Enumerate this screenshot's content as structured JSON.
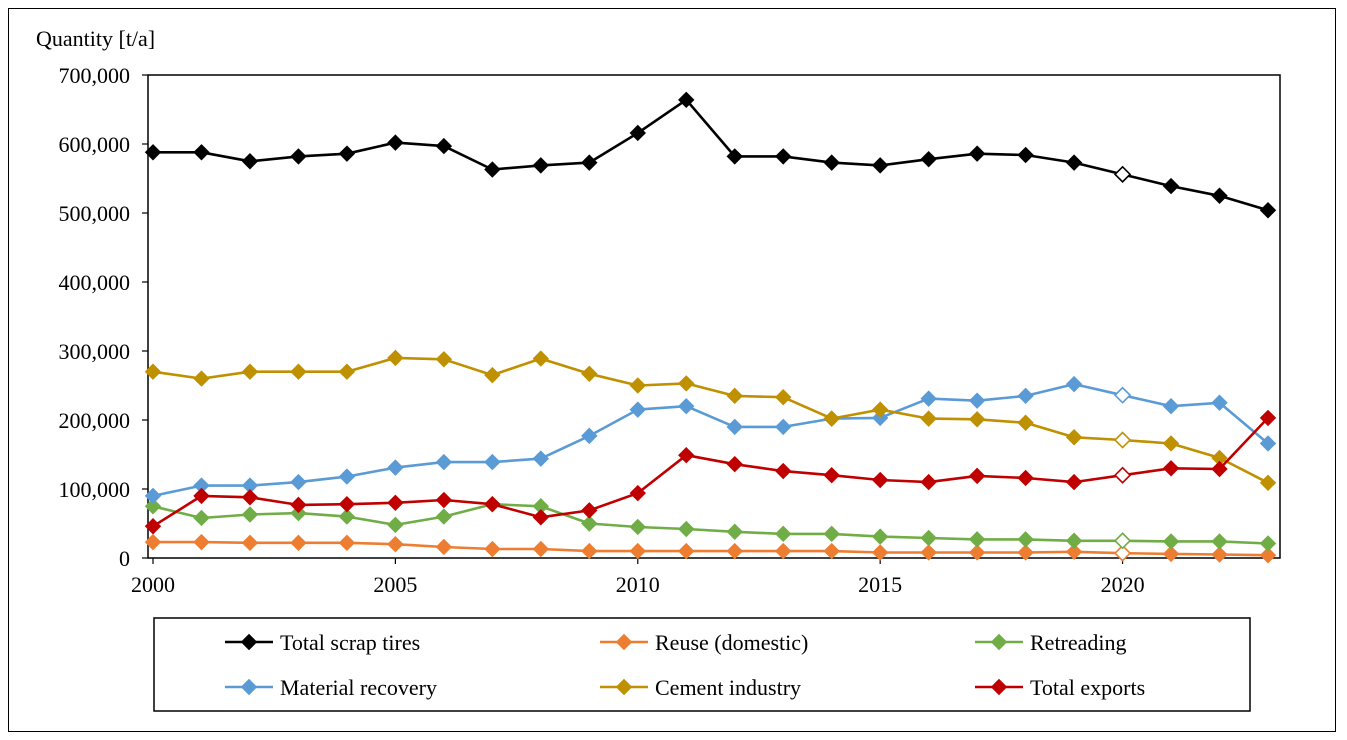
{
  "chart_data": {
    "type": "line",
    "ylabel": "Quantity [t/a]",
    "ylim": [
      0,
      700000
    ],
    "yticks": [
      0,
      100000,
      200000,
      300000,
      400000,
      500000,
      600000,
      700000
    ],
    "ytick_labels": [
      "0",
      "100,000",
      "200,000",
      "300,000",
      "400,000",
      "500,000",
      "600,000",
      "700,000"
    ],
    "xlim": [
      2000,
      2023
    ],
    "xticks": [
      2000,
      2005,
      2010,
      2015,
      2020
    ],
    "xtick_labels": [
      "2000",
      "2005",
      "2010",
      "2015",
      "2020"
    ],
    "x": [
      2000,
      2001,
      2002,
      2003,
      2004,
      2005,
      2006,
      2007,
      2008,
      2009,
      2010,
      2011,
      2012,
      2013,
      2014,
      2015,
      2016,
      2017,
      2018,
      2019,
      2020,
      2021,
      2022,
      2023
    ],
    "open_marker_year": 2020,
    "grid": false,
    "legend_position": "bottom",
    "series": [
      {
        "name": "Total scrap tires",
        "color": "#000000",
        "values": [
          588000,
          588000,
          575000,
          582000,
          586000,
          602000,
          597000,
          563000,
          569000,
          573000,
          616000,
          664000,
          582000,
          582000,
          573000,
          569000,
          578000,
          586000,
          584000,
          573000,
          556000,
          539000,
          525000,
          504000
        ]
      },
      {
        "name": "Reuse (domestic)",
        "color": "#ED7D31",
        "values": [
          23000,
          23000,
          22000,
          22000,
          22000,
          20000,
          16000,
          13000,
          13000,
          10000,
          10000,
          10000,
          10000,
          10000,
          10000,
          8000,
          8000,
          8000,
          8000,
          9000,
          7000,
          6000,
          5000,
          4000
        ]
      },
      {
        "name": "Retreading",
        "color": "#70AD47",
        "values": [
          75000,
          58000,
          63000,
          65000,
          60000,
          48000,
          60000,
          78000,
          75000,
          50000,
          45000,
          42000,
          38000,
          35000,
          35000,
          31000,
          29000,
          27000,
          27000,
          25000,
          25000,
          24000,
          24000,
          21000
        ]
      },
      {
        "name": "Material recovery",
        "color": "#5B9BD5",
        "values": [
          90000,
          105000,
          105000,
          110000,
          118000,
          131000,
          139000,
          139000,
          144000,
          177000,
          215000,
          220000,
          190000,
          190000,
          202000,
          203000,
          231000,
          228000,
          235000,
          252000,
          236000,
          220000,
          225000,
          166000
        ]
      },
      {
        "name": "Cement industry",
        "color": "#BF9000",
        "values": [
          270000,
          260000,
          270000,
          270000,
          270000,
          290000,
          288000,
          265000,
          289000,
          267000,
          250000,
          253000,
          235000,
          233000,
          202000,
          215000,
          202000,
          201000,
          196000,
          175000,
          171000,
          166000,
          145000,
          109000
        ]
      },
      {
        "name": "Total exports",
        "color": "#C00000",
        "values": [
          46000,
          90000,
          88000,
          77000,
          78000,
          80000,
          84000,
          78000,
          59000,
          69000,
          94000,
          149000,
          136000,
          126000,
          120000,
          113000,
          110000,
          119000,
          116000,
          110000,
          120000,
          130000,
          129000,
          203000
        ]
      }
    ]
  }
}
